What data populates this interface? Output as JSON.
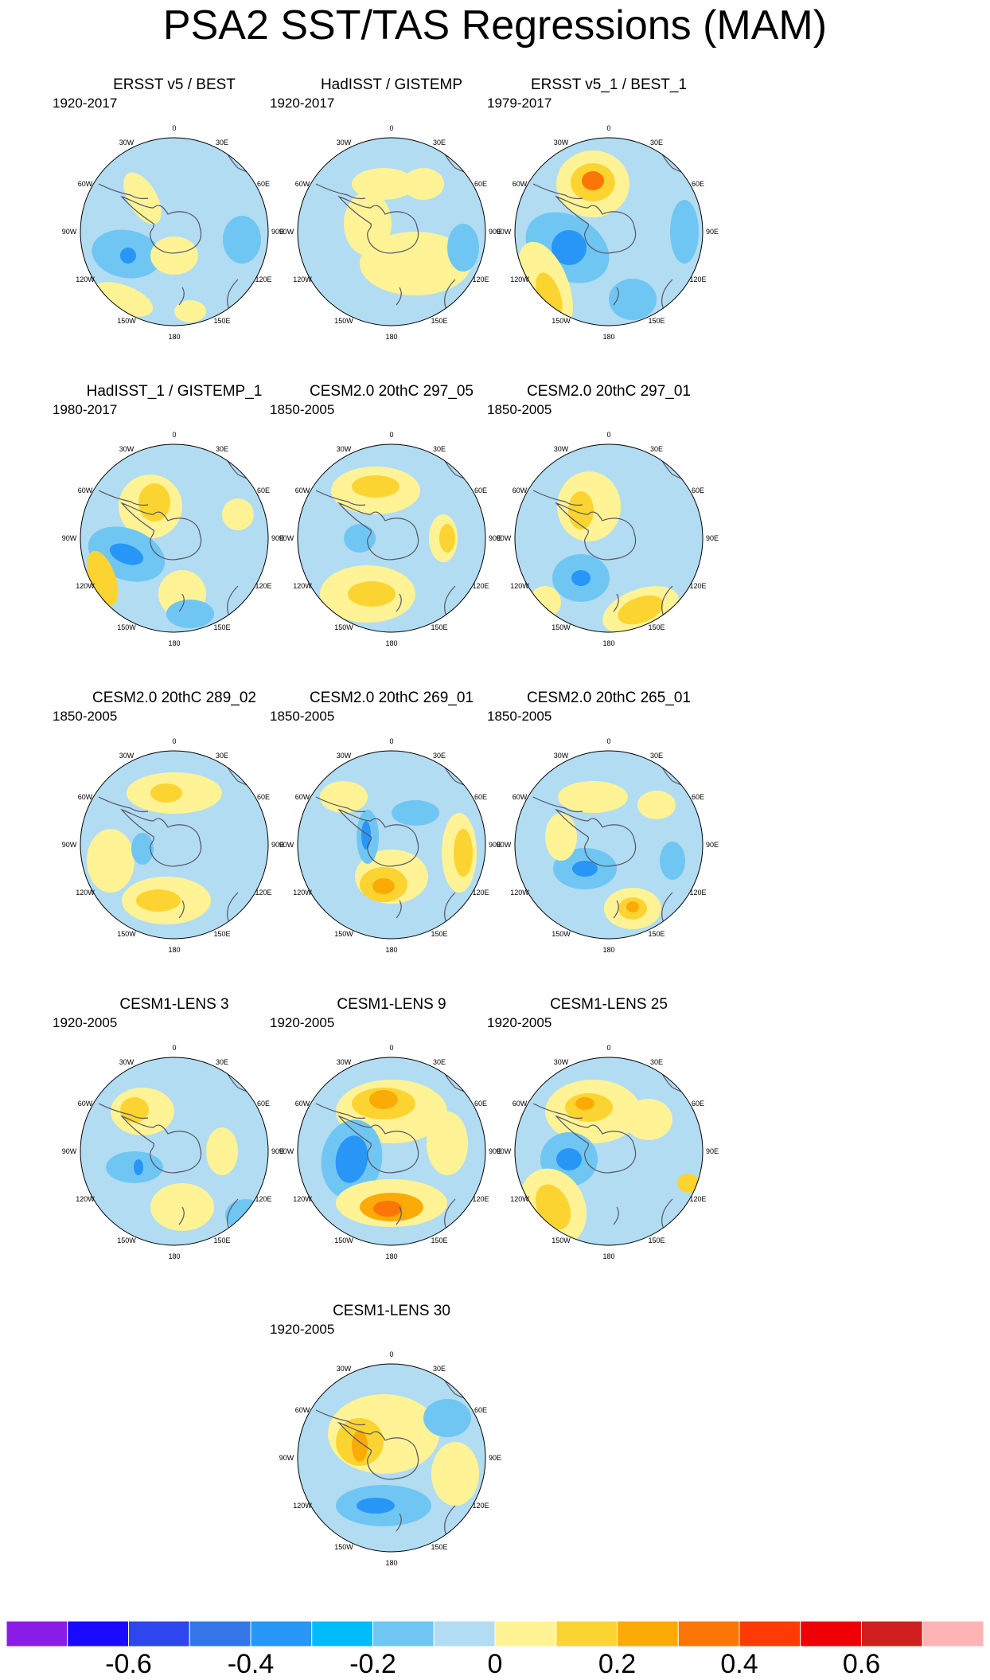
{
  "title": "PSA2 SST/TAS Regressions (MAM)",
  "panels": [
    {
      "title": "ERSST v5 / BEST",
      "years": "1920-2017"
    },
    {
      "title": "HadISST / GISTEMP",
      "years": "1920-2017"
    },
    {
      "title": "ERSST v5_1 / BEST_1",
      "years": "1979-2017"
    },
    {
      "title": "HadISST_1 / GISTEMP_1",
      "years": "1980-2017"
    },
    {
      "title": "CESM2.0 20thC 297_05",
      "years": "1850-2005"
    },
    {
      "title": "CESM2.0 20thC 297_01",
      "years": "1850-2005"
    },
    {
      "title": "CESM2.0 20thC 289_02",
      "years": "1850-2005"
    },
    {
      "title": "CESM2.0 20thC 269_01",
      "years": "1850-2005"
    },
    {
      "title": "CESM2.0 20thC 265_01",
      "years": "1850-2005"
    },
    {
      "title": "CESM1-LENS 3",
      "years": "1920-2005"
    },
    {
      "title": "CESM1-LENS 9",
      "years": "1920-2005"
    },
    {
      "title": "CESM1-LENS 25",
      "years": "1920-2005"
    },
    {
      "title": "CESM1-LENS 30",
      "years": "1920-2005"
    }
  ],
  "map_labels": {
    "lon_0": "0",
    "lon_30e": "30E",
    "lon_60e": "60E",
    "lon_90e": "90E",
    "lon_120e": "120E",
    "lon_150e": "150E",
    "lon_180": "180",
    "lon_150w": "150W",
    "lon_120w": "120W",
    "lon_90w": "90W",
    "lon_60w": "60W",
    "lon_30w": "30W"
  },
  "colorbar": {
    "colors": [
      "#8a1ce8",
      "#1a09ff",
      "#2d46ee",
      "#3476e8",
      "#2796f7",
      "#00bcfb",
      "#70c6f2",
      "#b2dcf2",
      "#fff396",
      "#fcd431",
      "#fcaa06",
      "#fc7607",
      "#fe3b07",
      "#ef0007",
      "#d11f1f",
      "#feb4b4"
    ],
    "labels": [
      "-0.6",
      "-0.4",
      "-0.2",
      "0",
      "0.2",
      "0.4",
      "0.6"
    ]
  },
  "palette": {
    "neg": "#b2dcf2",
    "neg2": "#70c6f2",
    "neg3": "#2796f7",
    "pos": "#fff396",
    "pos2": "#fcd431",
    "pos3": "#fcaa06",
    "pos4": "#fc7607",
    "coast": "#555566"
  }
}
